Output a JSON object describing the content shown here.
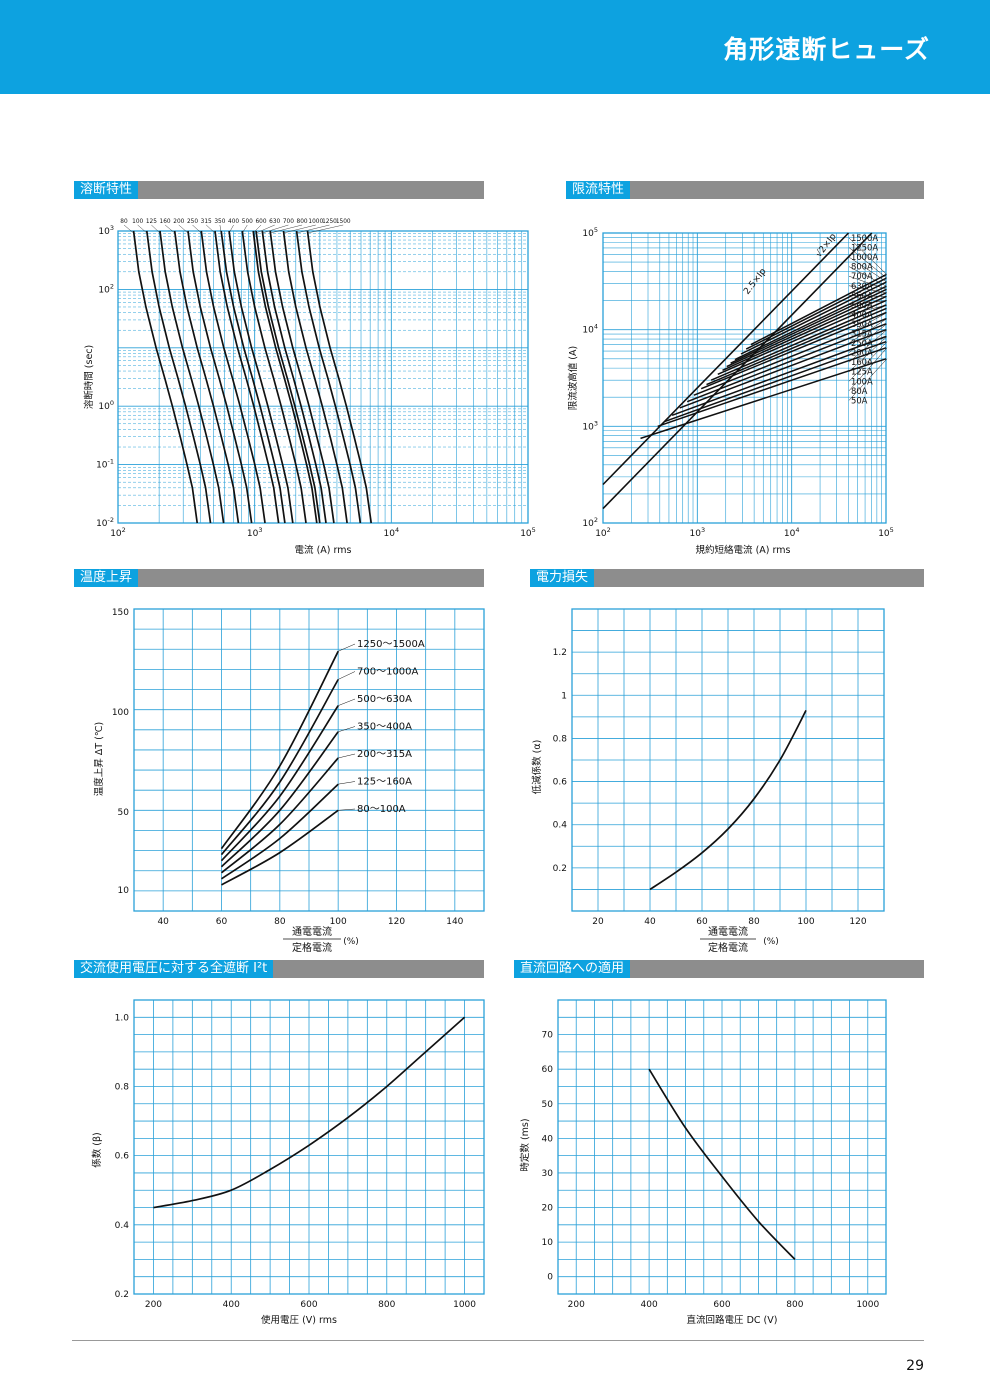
{
  "page": {
    "banner_title": "角形速断ヒューズ",
    "page_number": "29",
    "colors": {
      "banner": "#0da2e0",
      "section_bar": "#8d8d8d",
      "grid": "#2aa0d8",
      "curve": "#111111"
    }
  },
  "sections": {
    "melting": "溶断特性",
    "limiting": "限流特性",
    "temp_rise": "温度上昇",
    "power_loss": "電力損失",
    "ac_i2t": "交流使用電圧に対する全遮断 I²t",
    "dc": "直流回路への適用"
  },
  "chart_data": [
    {
      "id": "melting",
      "type": "line",
      "xscale": "log",
      "yscale": "log",
      "xlim": [
        100,
        100000
      ],
      "ylim": [
        0.01,
        1000
      ],
      "xlabel": "電流 (A) rms",
      "ylabel": "溶断時間 (sec)",
      "xticks": [
        "10^2",
        "10^3",
        "10^4",
        "10^5"
      ],
      "yticks": [
        "10^-2",
        "10^-1",
        "10^0",
        "10^2",
        "10^3"
      ],
      "ratings": [
        "80",
        "100",
        "125",
        "160",
        "200",
        "250",
        "315",
        "350",
        "400",
        "500",
        "600",
        "630",
        "700",
        "800",
        "1000",
        "1250",
        "1500"
      ],
      "series_scale": [
        1.0,
        1.25,
        1.56,
        2.0,
        2.5,
        3.13,
        3.94,
        4.38,
        5.0,
        6.25,
        7.5,
        7.88,
        8.75,
        10.0,
        12.5,
        15.6,
        18.75
      ],
      "base_curve": [
        [
          130,
          1000
        ],
        [
          142,
          200
        ],
        [
          160,
          50
        ],
        [
          190,
          10
        ],
        [
          220,
          3
        ],
        [
          250,
          1
        ],
        [
          285,
          0.3
        ],
        [
          320,
          0.1
        ],
        [
          350,
          0.04
        ],
        [
          380,
          0.01
        ]
      ],
      "grid": true
    },
    {
      "id": "limiting",
      "type": "line",
      "xscale": "log",
      "yscale": "log",
      "xlim": [
        100,
        100000
      ],
      "ylim": [
        100,
        100000
      ],
      "xlabel": "規約短絡電流 (A) rms",
      "ylabel": "限流波高値 (A)",
      "xticks": [
        "10^2",
        "10^3",
        "10^4",
        "10^5"
      ],
      "yticks": [
        "10^2",
        "10^3",
        "10^4",
        "10^5"
      ],
      "annotations": [
        "2.5×Ip",
        "√2×Ip"
      ],
      "ref_lines": [
        {
          "label": "2.5×Ip",
          "points": [
            [
              100,
              250
            ],
            [
              40000,
              100000
            ]
          ]
        },
        {
          "label": "√2×Ip",
          "points": [
            [
              100,
              141
            ],
            [
              70700,
              100000
            ]
          ]
        }
      ],
      "series": [
        {
          "name": "50A",
          "points": [
            [
              250,
              750
            ],
            [
              100000,
              5000
            ]
          ]
        },
        {
          "name": "80A",
          "points": [
            [
              380,
              1000
            ],
            [
              100000,
              6500
            ]
          ]
        },
        {
          "name": "100A",
          "points": [
            [
              450,
              1120
            ],
            [
              100000,
              7500
            ]
          ]
        },
        {
          "name": "125A",
          "points": [
            [
              540,
              1300
            ],
            [
              100000,
              8500
            ]
          ]
        },
        {
          "name": "160A",
          "points": [
            [
              650,
              1550
            ],
            [
              100000,
              10000
            ]
          ]
        },
        {
          "name": "200A",
          "points": [
            [
              780,
              1800
            ],
            [
              100000,
              11500
            ]
          ]
        },
        {
          "name": "250A",
          "points": [
            [
              920,
              2100
            ],
            [
              100000,
              13000
            ]
          ]
        },
        {
          "name": "315A",
          "points": [
            [
              1100,
              2450
            ],
            [
              100000,
              15000
            ]
          ]
        },
        {
          "name": "350A",
          "points": [
            [
              1250,
              2700
            ],
            [
              100000,
              16500
            ]
          ]
        },
        {
          "name": "400A",
          "points": [
            [
              1400,
              3000
            ],
            [
              100000,
              18000
            ]
          ]
        },
        {
          "name": "500A",
          "points": [
            [
              1650,
              3450
            ],
            [
              100000,
              20000
            ]
          ]
        },
        {
          "name": "560A",
          "points": [
            [
              1850,
              3800
            ],
            [
              100000,
              22000
            ]
          ]
        },
        {
          "name": "630A",
          "points": [
            [
              2050,
              4150
            ],
            [
              100000,
              24000
            ]
          ]
        },
        {
          "name": "700A",
          "points": [
            [
              2250,
              4500
            ],
            [
              100000,
              26000
            ]
          ]
        },
        {
          "name": "800A",
          "points": [
            [
              2500,
              4900
            ],
            [
              100000,
              28000
            ]
          ]
        },
        {
          "name": "1000A",
          "points": [
            [
              2900,
              5600
            ],
            [
              100000,
              31000
            ]
          ]
        },
        {
          "name": "1250A",
          "points": [
            [
              3300,
              6300
            ],
            [
              100000,
              34000
            ]
          ]
        },
        {
          "name": "1500A",
          "points": [
            [
              3700,
              7000
            ],
            [
              100000,
              37000
            ]
          ]
        }
      ],
      "grid": true
    },
    {
      "id": "temp_rise",
      "type": "line",
      "xlim": [
        30,
        150
      ],
      "ylim": [
        0,
        150
      ],
      "xticks": [
        40,
        60,
        80,
        100,
        120,
        140
      ],
      "yticks": [
        10,
        50,
        100,
        150
      ],
      "xlabel_top": "通電電流",
      "xlabel_bottom": "定格電流",
      "xlabel_unit": "(%)",
      "ylabel": "温度上昇 ΔT (℃)",
      "series": [
        {
          "name": "80〜100A",
          "x": [
            60,
            80,
            100
          ],
          "y": [
            13,
            29,
            50
          ]
        },
        {
          "name": "125〜160A",
          "x": [
            60,
            80,
            100
          ],
          "y": [
            16,
            36,
            63
          ]
        },
        {
          "name": "200〜315A",
          "x": [
            60,
            80,
            100
          ],
          "y": [
            19,
            43,
            76
          ]
        },
        {
          "name": "350〜400A",
          "x": [
            60,
            80,
            100
          ],
          "y": [
            22,
            50,
            89
          ]
        },
        {
          "name": "500〜630A",
          "x": [
            60,
            80,
            100
          ],
          "y": [
            25,
            57,
            102
          ]
        },
        {
          "name": "700〜1000A",
          "x": [
            60,
            80,
            100
          ],
          "y": [
            28,
            64,
            115
          ]
        },
        {
          "name": "1250〜1500A",
          "x": [
            60,
            80,
            100
          ],
          "y": [
            31,
            72,
            129
          ]
        }
      ],
      "grid": true
    },
    {
      "id": "power_loss",
      "type": "line",
      "xlim": [
        10,
        130
      ],
      "ylim": [
        0,
        1.4
      ],
      "xticks": [
        20,
        40,
        60,
        80,
        100,
        120
      ],
      "yticks": [
        "0.2",
        "0.4",
        "0.6",
        "0.8",
        "1",
        "1.2"
      ],
      "xlabel_top": "通電電流",
      "xlabel_bottom": "定格電流",
      "xlabel_unit": "(%)",
      "ylabel": "低減係数 (α)",
      "series": [
        {
          "x": [
            40,
            50,
            60,
            70,
            80,
            90,
            100
          ],
          "y": [
            0.1,
            0.18,
            0.27,
            0.38,
            0.52,
            0.7,
            0.93
          ]
        }
      ],
      "grid": true
    },
    {
      "id": "ac_i2t",
      "type": "line",
      "xlim": [
        150,
        1050
      ],
      "ylim": [
        0.2,
        1.05
      ],
      "xticks": [
        200,
        400,
        600,
        800,
        1000
      ],
      "yticks": [
        "0.2",
        "0.4",
        "0.6",
        "0.8",
        "1.0"
      ],
      "xlabel": "使用電圧 (V) rms",
      "ylabel": "係数 (β)",
      "series": [
        {
          "x": [
            200,
            300,
            400,
            500,
            600,
            700,
            800,
            900,
            1000
          ],
          "y": [
            0.45,
            0.47,
            0.5,
            0.56,
            0.63,
            0.71,
            0.8,
            0.9,
            1.0
          ]
        }
      ],
      "grid": true
    },
    {
      "id": "dc",
      "type": "line",
      "xlim": [
        150,
        1050
      ],
      "ylim": [
        -5,
        80
      ],
      "xticks": [
        200,
        400,
        600,
        800,
        1000
      ],
      "yticks": [
        0,
        10,
        20,
        30,
        40,
        50,
        60,
        70
      ],
      "xlabel": "直流回路電圧 DC (V)",
      "ylabel": "時定数 (ms)",
      "series": [
        {
          "x": [
            400,
            500,
            600,
            700,
            800
          ],
          "y": [
            60,
            43,
            29,
            16,
            5
          ]
        }
      ],
      "grid": true
    }
  ]
}
